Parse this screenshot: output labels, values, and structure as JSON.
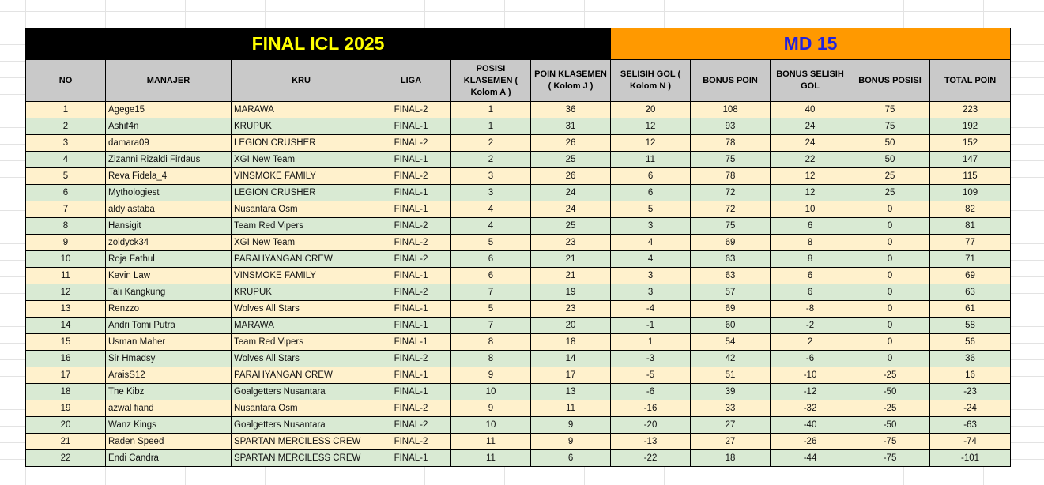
{
  "banner": {
    "title": "FINAL ICL 2025",
    "matchday": "MD 15"
  },
  "columns": [
    "NO",
    "MANAJER",
    "KRU",
    "LIGA",
    "POSISI KLASEMEN ( Kolom A )",
    "POIN KLASEMEN ( Kolom J )",
    "SELISIH GOL ( Kolom N )",
    "BONUS POIN",
    "BONUS SELISIH GOL",
    "BONUS POSISI",
    "TOTAL POIN"
  ],
  "rows": [
    [
      "1",
      "Agege15",
      "MARAWA",
      "FINAL-2",
      "1",
      "36",
      "20",
      "108",
      "40",
      "75",
      "223"
    ],
    [
      "2",
      "Ashif4n",
      "KRUPUK",
      "FINAL-1",
      "1",
      "31",
      "12",
      "93",
      "24",
      "75",
      "192"
    ],
    [
      "3",
      "damara09",
      "LEGION CRUSHER",
      "FINAL-2",
      "2",
      "26",
      "12",
      "78",
      "24",
      "50",
      "152"
    ],
    [
      "4",
      "Zizanni Rizaldi Firdaus",
      "XGI New Team",
      "FINAL-1",
      "2",
      "25",
      "11",
      "75",
      "22",
      "50",
      "147"
    ],
    [
      "5",
      "Reva Fidela_4",
      "VINSMOKE FAMILY",
      "FINAL-2",
      "3",
      "26",
      "6",
      "78",
      "12",
      "25",
      "115"
    ],
    [
      "6",
      "Mythologiest",
      "LEGION CRUSHER",
      "FINAL-1",
      "3",
      "24",
      "6",
      "72",
      "12",
      "25",
      "109"
    ],
    [
      "7",
      "aldy astaba",
      "Nusantara Osm",
      "FINAL-1",
      "4",
      "24",
      "5",
      "72",
      "10",
      "0",
      "82"
    ],
    [
      "8",
      "Hansigit",
      "Team Red Vipers",
      "FINAL-2",
      "4",
      "25",
      "3",
      "75",
      "6",
      "0",
      "81"
    ],
    [
      "9",
      "zoldyck34",
      "XGI New Team",
      "FINAL-2",
      "5",
      "23",
      "4",
      "69",
      "8",
      "0",
      "77"
    ],
    [
      "10",
      "Roja Fathul",
      "PARAHYANGAN CREW",
      "FINAL-2",
      "6",
      "21",
      "4",
      "63",
      "8",
      "0",
      "71"
    ],
    [
      "11",
      "Kevin Law",
      "VINSMOKE FAMILY",
      "FINAL-1",
      "6",
      "21",
      "3",
      "63",
      "6",
      "0",
      "69"
    ],
    [
      "12",
      "Tali Kangkung",
      "KRUPUK",
      "FINAL-2",
      "7",
      "19",
      "3",
      "57",
      "6",
      "0",
      "63"
    ],
    [
      "13",
      "Renzzo",
      "Wolves All Stars",
      "FINAL-1",
      "5",
      "23",
      "-4",
      "69",
      "-8",
      "0",
      "61"
    ],
    [
      "14",
      "Andri Tomi Putra",
      "MARAWA",
      "FINAL-1",
      "7",
      "20",
      "-1",
      "60",
      "-2",
      "0",
      "58"
    ],
    [
      "15",
      "Usman Maher",
      "Team Red Vipers",
      "FINAL-1",
      "8",
      "18",
      "1",
      "54",
      "2",
      "0",
      "56"
    ],
    [
      "16",
      "Sir Hmadsy",
      "Wolves All Stars",
      "FINAL-2",
      "8",
      "14",
      "-3",
      "42",
      "-6",
      "0",
      "36"
    ],
    [
      "17",
      "AraisS12",
      "PARAHYANGAN CREW",
      "FINAL-1",
      "9",
      "17",
      "-5",
      "51",
      "-10",
      "-25",
      "16"
    ],
    [
      "18",
      "The Kibz",
      "Goalgetters Nusantara",
      "FINAL-1",
      "10",
      "13",
      "-6",
      "39",
      "-12",
      "-50",
      "-23"
    ],
    [
      "19",
      "azwal fiand",
      "Nusantara Osm",
      "FINAL-2",
      "9",
      "11",
      "-16",
      "33",
      "-32",
      "-25",
      "-24"
    ],
    [
      "20",
      "Wanz Kings",
      "Goalgetters Nusantara",
      "FINAL-2",
      "10",
      "9",
      "-20",
      "27",
      "-40",
      "-50",
      "-63"
    ],
    [
      "21",
      "Raden Speed",
      "SPARTAN MERCILESS CREW",
      "FINAL-2",
      "11",
      "9",
      "-13",
      "27",
      "-26",
      "-75",
      "-74"
    ],
    [
      "22",
      "Endi Candra",
      "SPARTAN MERCILESS CREW",
      "FINAL-1",
      "11",
      "6",
      "-22",
      "18",
      "-44",
      "-75",
      "-101"
    ]
  ],
  "colors": {
    "banner_left_bg": "#000000",
    "banner_left_text": "#ffff00",
    "banner_right_bg": "#ff9900",
    "banner_right_text": "#2222dd",
    "header_bg": "#c9c9c9",
    "row_odd_bg": "#fff1cc",
    "row_even_bg": "#d9ead3"
  }
}
